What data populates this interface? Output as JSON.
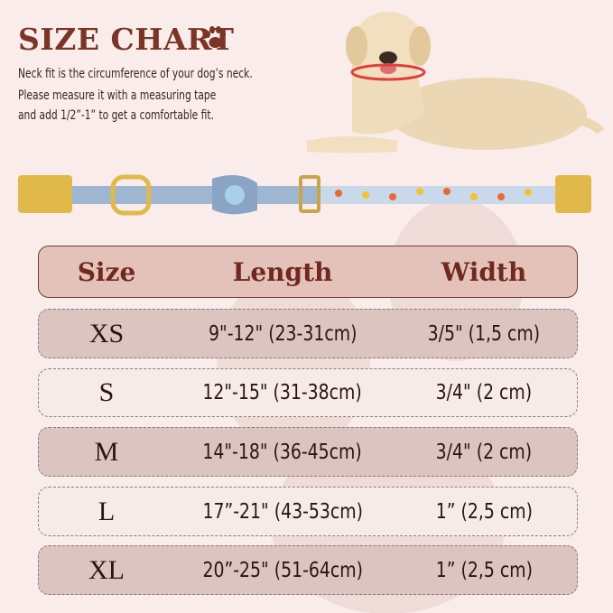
{
  "title": "SIZE CHART",
  "description": [
    "Neck fit is the circumference of your dog’s neck.",
    "Please measure it with a measuring tape",
    " and add 1/2”-1” to get a comfortable fit."
  ],
  "colors": {
    "title": "#7a3526",
    "header_bg": "#e5c2b9",
    "row_dark": "#dcc5c0",
    "row_light": "#f7ebe9",
    "collar": "#8fa8c8"
  },
  "table": {
    "headers": [
      "Size",
      "Length",
      "Width"
    ],
    "rows": [
      {
        "size": "XS",
        "length": "9\"-12\" (23-31cm)",
        "width": "3/5\" (1,5 cm)"
      },
      {
        "size": "S",
        "length": "12\"-15\" (31-38cm)",
        "width": "3/4\" (2 cm)"
      },
      {
        "size": "M",
        "length": "14\"-18\" (36-45cm)",
        "width": "3/4\" (2 cm)"
      },
      {
        "size": "L",
        "length": "17”-21\" (43-53cm)",
        "width": "1”  (2,5 cm)"
      },
      {
        "size": "XL",
        "length": "20”-25\" (51-64cm)",
        "width": "1”  (2,5 cm)"
      }
    ]
  }
}
